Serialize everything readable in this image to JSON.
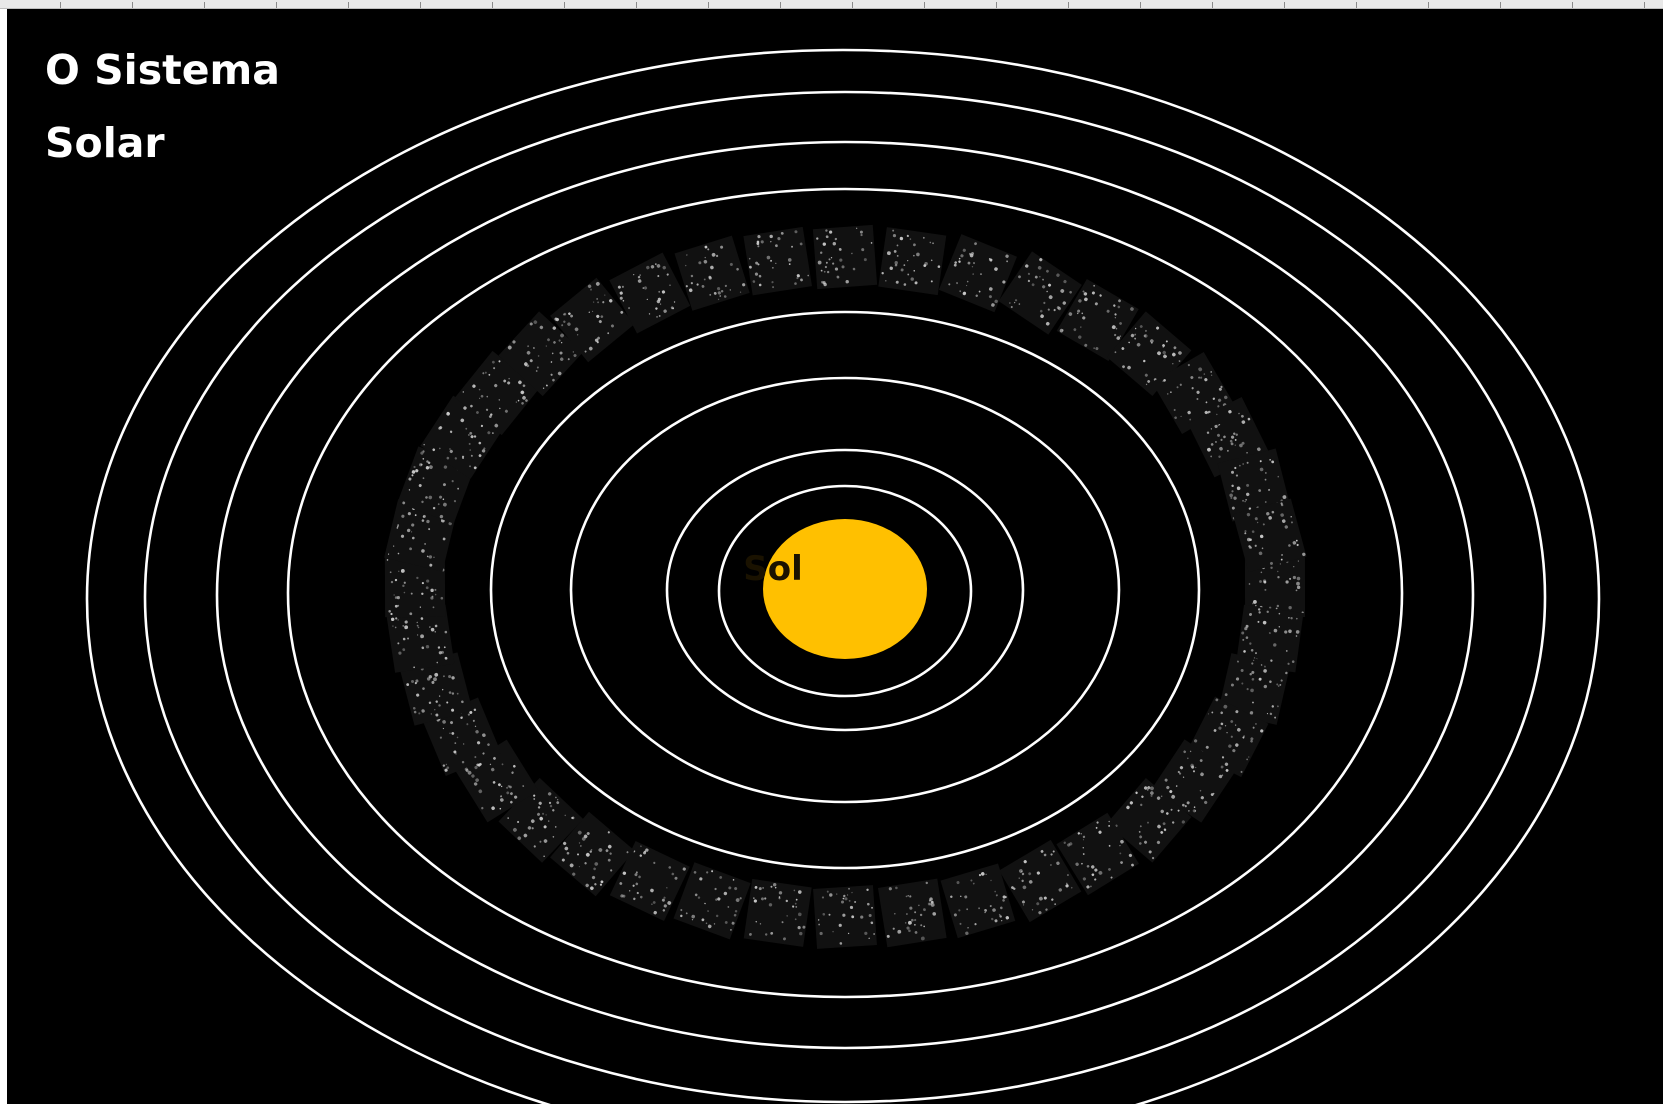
{
  "title": {
    "line1": "O Sistema",
    "line2": "Solar"
  },
  "sun": {
    "label": "Sol",
    "color": "#FFC000"
  },
  "orbits": {
    "count": 8,
    "color": "#FFFFFF"
  },
  "asteroid_belt": {
    "color": "#CFCFCF"
  },
  "background": "#000000"
}
